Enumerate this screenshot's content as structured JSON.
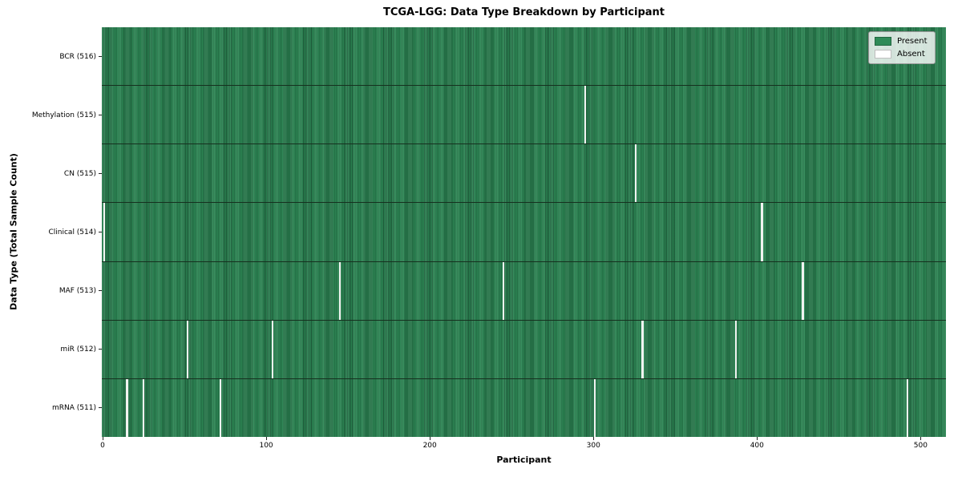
{
  "chart_data": {
    "type": "heatmap",
    "title": "TCGA-LGG: Data Type Breakdown by Participant",
    "xlabel": "Participant",
    "ylabel": "Data Type (Total Sample Count)",
    "x_ticks": [
      0,
      100,
      200,
      300,
      400,
      500
    ],
    "xlim": [
      -0.5,
      515.5
    ],
    "n_participants": 516,
    "grid": false,
    "legend_position": "upper right",
    "colors": {
      "present": "#2e8b57",
      "present_edge": "#1e5c3a",
      "absent": "#ffffff"
    },
    "legend": [
      {
        "label": "Present",
        "color": "#2e8b57"
      },
      {
        "label": "Absent",
        "color": "#ffffff"
      }
    ],
    "rows": [
      {
        "label": "BCR (516)",
        "data_type": "BCR",
        "present_count": 516,
        "absent_participants": []
      },
      {
        "label": "Methylation (515)",
        "data_type": "Methylation",
        "present_count": 515,
        "absent_participants": [
          295
        ]
      },
      {
        "label": "CN (515)",
        "data_type": "CN",
        "present_count": 515,
        "absent_participants": [
          326
        ]
      },
      {
        "label": "Clinical (514)",
        "data_type": "Clinical",
        "present_count": 514,
        "absent_participants": [
          1,
          403
        ]
      },
      {
        "label": "MAF (513)",
        "data_type": "MAF",
        "present_count": 513,
        "absent_participants": [
          145,
          245,
          428
        ]
      },
      {
        "label": "miR (512)",
        "data_type": "miR",
        "present_count": 512,
        "absent_participants": [
          52,
          104,
          330,
          387
        ]
      },
      {
        "label": "mRNA (511)",
        "data_type": "mRNA",
        "present_count": 511,
        "absent_participants": [
          15,
          25,
          72,
          301,
          492
        ]
      }
    ]
  }
}
